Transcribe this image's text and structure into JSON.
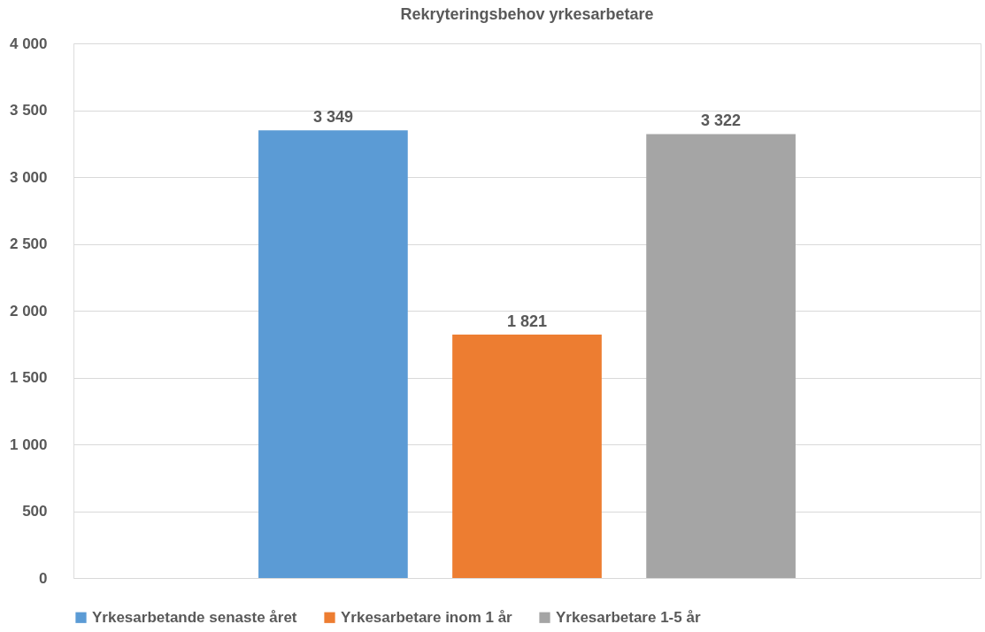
{
  "chart_data": {
    "type": "bar",
    "title": "Rekryteringsbehov  yrkesarbetare",
    "categories": [
      null
    ],
    "series": [
      {
        "name": "Yrkesarbetande senaste året",
        "color": "#5b9bd5",
        "values": [
          3349
        ],
        "value_labels": [
          "3 349"
        ]
      },
      {
        "name": "Yrkesarbetare inom 1 år",
        "color": "#ed7d31",
        "values": [
          1821
        ],
        "value_labels": [
          "1 821"
        ]
      },
      {
        "name": "Yrkesarbetare 1-5 år",
        "color": "#a5a5a5",
        "values": [
          3322
        ],
        "value_labels": [
          "3 322"
        ]
      }
    ],
    "ylim": [
      0,
      4000
    ],
    "yticks": [
      0,
      {
        "value": 500,
        "label": "500"
      },
      {
        "value": 1000,
        "label": "1 000"
      },
      {
        "value": 1500,
        "label": "1 500"
      },
      {
        "value": 2000,
        "label": "2 000"
      },
      {
        "value": 2500,
        "label": "2 500"
      },
      {
        "value": 3000,
        "label": "3 000"
      },
      {
        "value": 3500,
        "label": "3 500"
      },
      {
        "value": 4000,
        "label": "4 000"
      }
    ],
    "grid": "y",
    "legend": "bottom"
  }
}
